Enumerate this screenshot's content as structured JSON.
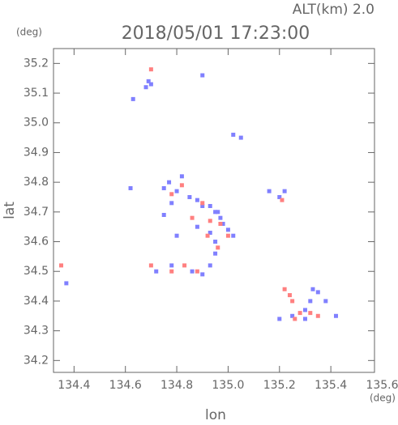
{
  "chart_data": {
    "type": "scatter",
    "title": "2018/05/01 17:23:00",
    "subtitle": "ALT(km) 2.0",
    "y_unit": "(deg)",
    "x_unit": "(deg)",
    "y_label": "lat",
    "x_label": "lon",
    "xlim": [
      134.32,
      135.57
    ],
    "ylim": [
      34.16,
      35.25
    ],
    "xticks": [
      134.4,
      134.6,
      134.8,
      {
        "value": 135.0,
        "label": "135.0"
      },
      135.2,
      135.4,
      135.6
    ],
    "yticks": [
      34.2,
      34.3,
      34.4,
      34.5,
      34.6,
      34.7,
      34.8,
      34.9,
      {
        "value": 35.0,
        "label": "35.0"
      },
      35.1,
      35.2
    ],
    "series": [
      {
        "color": "#8080ff",
        "x": [
          134.69,
          134.7,
          134.68,
          134.63,
          134.9,
          135.02,
          135.05,
          134.62,
          134.75,
          134.77,
          134.8,
          134.82,
          134.78,
          134.85,
          134.88,
          134.9,
          134.93,
          134.95,
          134.97,
          134.98,
          135.0,
          135.02,
          134.93,
          134.95,
          135.16,
          135.2,
          135.22,
          134.37,
          134.72,
          134.78,
          134.86,
          134.9,
          134.93,
          134.95,
          135.2,
          135.25,
          135.3,
          135.32,
          135.33,
          135.35,
          135.38,
          135.42,
          135.3,
          134.96,
          134.75,
          134.8,
          134.88
        ],
        "y": [
          35.14,
          35.13,
          35.12,
          35.08,
          35.16,
          34.96,
          34.95,
          34.78,
          34.78,
          34.8,
          34.77,
          34.82,
          34.73,
          34.75,
          34.74,
          34.72,
          34.72,
          34.7,
          34.68,
          34.66,
          34.64,
          34.62,
          34.63,
          34.6,
          34.77,
          34.75,
          34.77,
          34.46,
          34.5,
          34.52,
          34.5,
          34.49,
          34.52,
          34.56,
          34.34,
          34.35,
          34.37,
          34.4,
          34.44,
          34.43,
          34.4,
          34.35,
          34.34,
          34.7,
          34.69,
          34.62,
          34.65
        ]
      },
      {
        "color": "#ff8080",
        "x": [
          134.7,
          134.82,
          134.78,
          134.9,
          134.93,
          134.97,
          135.0,
          134.96,
          135.21,
          134.35,
          134.7,
          134.78,
          134.83,
          134.88,
          135.22,
          135.25,
          135.26,
          135.28,
          135.32,
          135.35,
          135.24,
          134.86,
          134.92
        ],
        "y": [
          35.18,
          34.79,
          34.76,
          34.73,
          34.67,
          34.66,
          34.62,
          34.58,
          34.74,
          34.52,
          34.52,
          34.5,
          34.52,
          34.5,
          34.44,
          34.4,
          34.34,
          34.36,
          34.36,
          34.35,
          34.42,
          34.68,
          34.62
        ]
      }
    ]
  }
}
